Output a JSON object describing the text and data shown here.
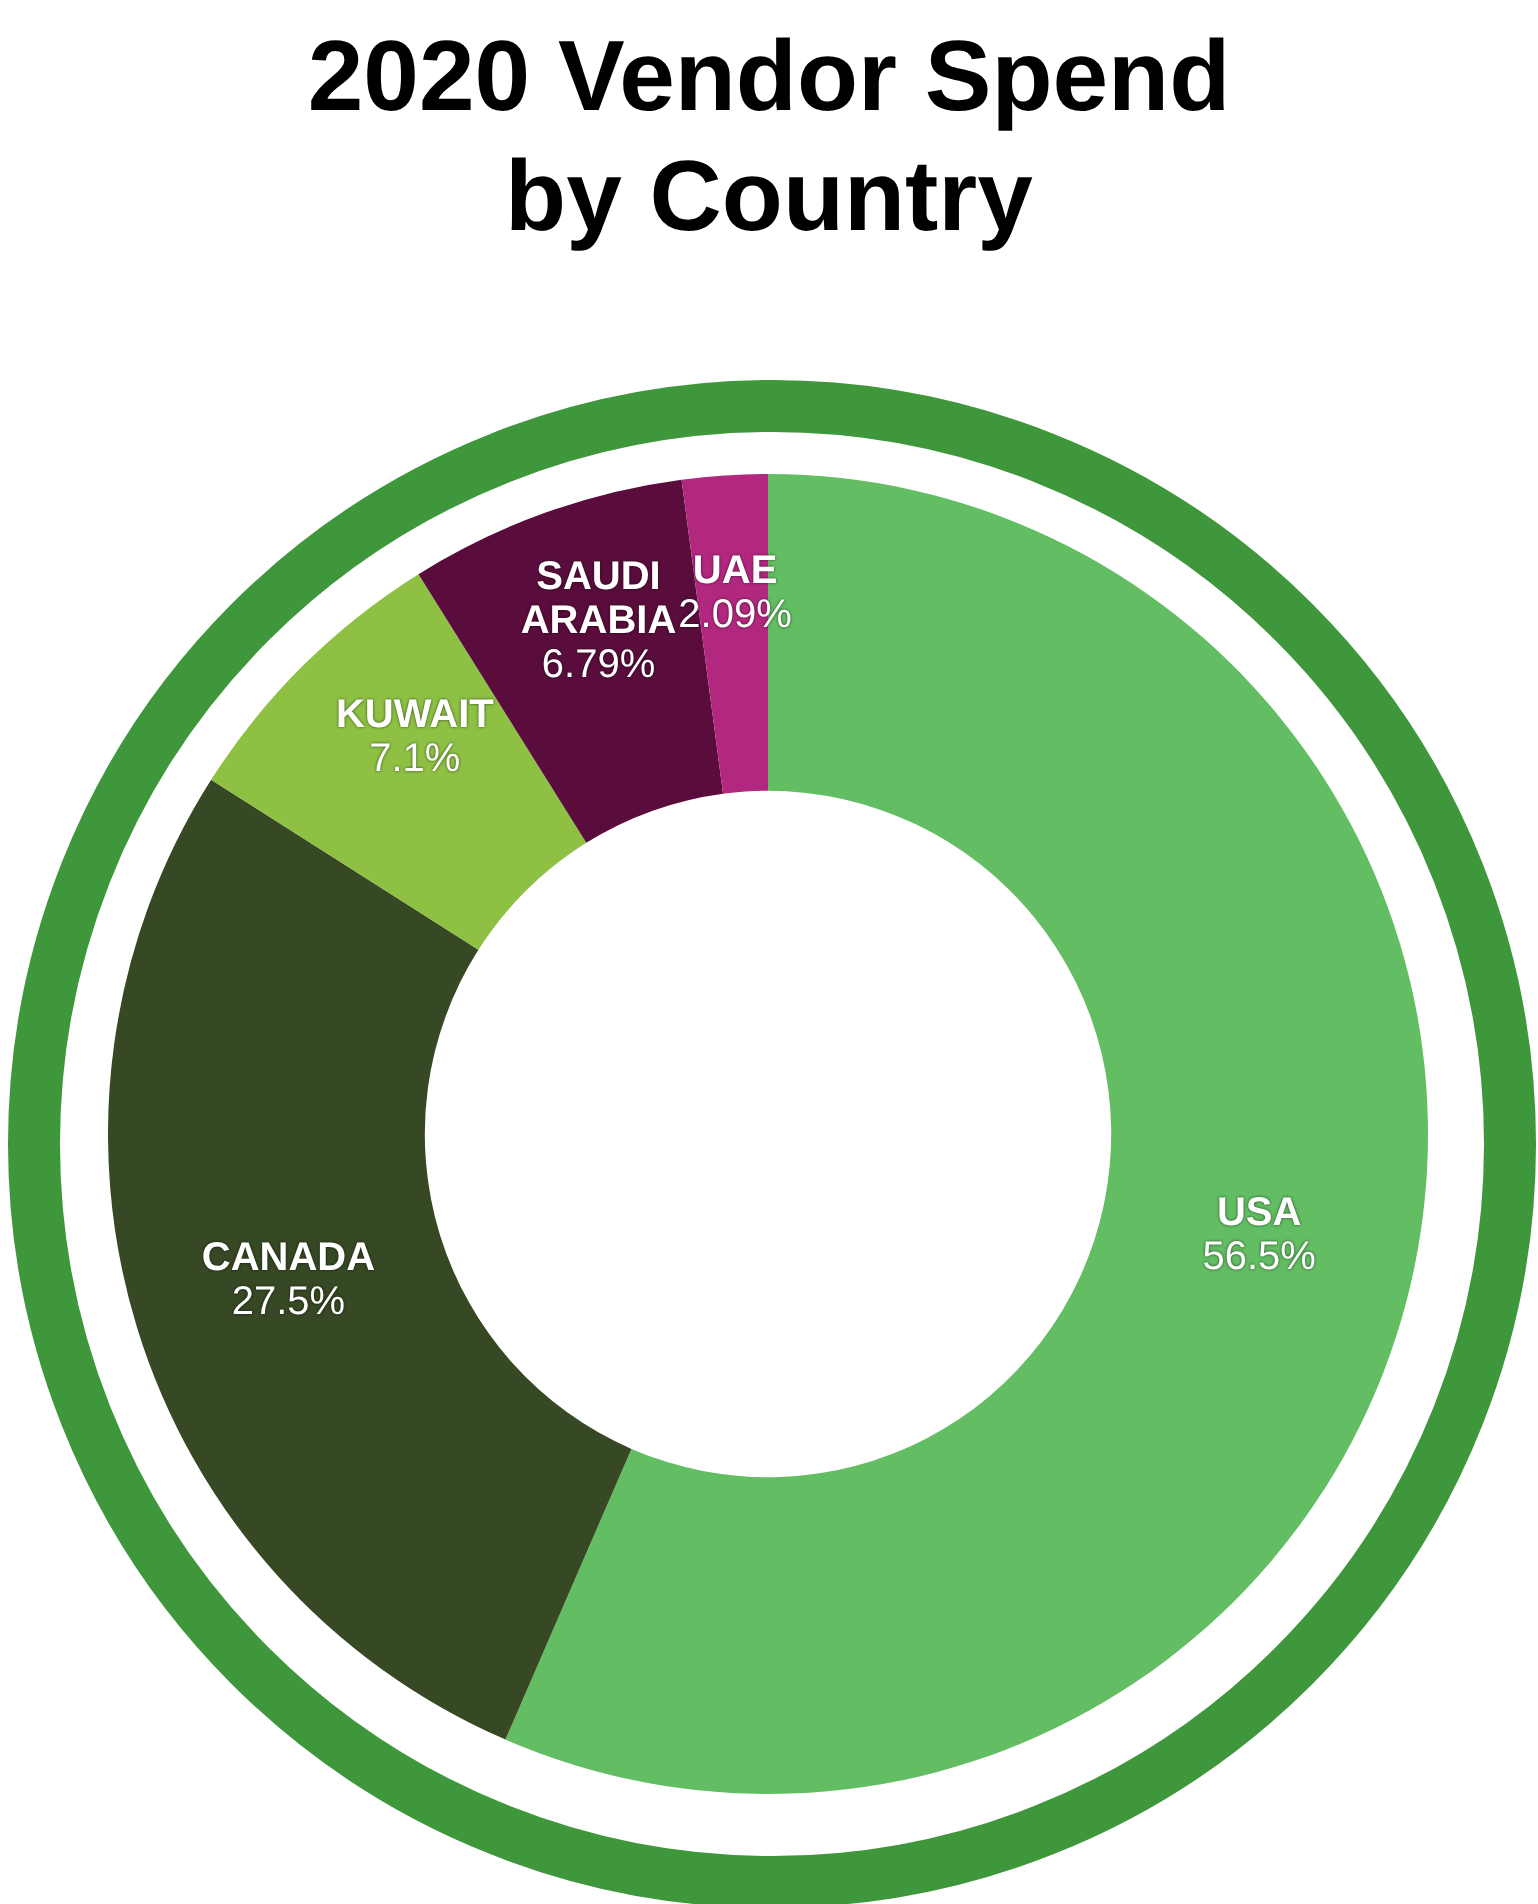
{
  "chart_data": {
    "type": "donut",
    "title": "2020 Vendor Spend by Country",
    "categories": [
      "USA",
      "CANADA",
      "KUWAIT",
      "SAUDI ARABIA",
      "UAE"
    ],
    "values": [
      56.5,
      27.5,
      7.1,
      6.79,
      2.09
    ],
    "value_labels": [
      "56.5%",
      "27.5%",
      "7.1%",
      "6.79%",
      "2.09%"
    ],
    "colors": [
      "#62bd63",
      "#374824",
      "#8dc043",
      "#5a0d3c",
      "#b3287f"
    ],
    "legend": false
  }
}
